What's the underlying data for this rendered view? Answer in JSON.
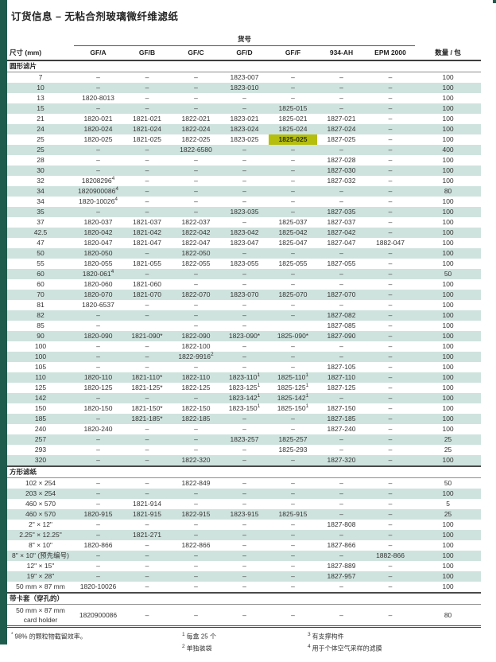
{
  "page": {
    "title": "订货信息 – 无粘合剂玻璃微纤维滤纸"
  },
  "colors": {
    "accent_green": "#1E5C4E",
    "row_stripe": "#CFE3DE",
    "highlight": "#B5BE0C"
  },
  "table": {
    "group_header": "货号",
    "columns": [
      "尺寸 (mm)",
      "GF/A",
      "GF/B",
      "GF/C",
      "GF/D",
      "GF/F",
      "934-AH",
      "EPM 2000",
      "数量 / 包"
    ],
    "highlight": {
      "section_index": 0,
      "row_index": 6,
      "col_index": 4
    },
    "sections": [
      {
        "label": "圆形滤片",
        "rows": [
          {
            "size": "7",
            "cells": [
              "–",
              "–",
              "–",
              "1823-007",
              "–",
              "–",
              "–"
            ],
            "qty": "100"
          },
          {
            "size": "10",
            "cells": [
              "–",
              "–",
              "–",
              "1823-010",
              "–",
              "–",
              "–"
            ],
            "qty": "100"
          },
          {
            "size": "13",
            "cells": [
              "1820-8013",
              "–",
              "–",
              "–",
              "–",
              "–",
              "–"
            ],
            "qty": "100"
          },
          {
            "size": "15",
            "cells": [
              "–",
              "–",
              "–",
              "–",
              "1825-015",
              "–",
              "–"
            ],
            "qty": "100"
          },
          {
            "size": "21",
            "cells": [
              "1820-021",
              "1821-021",
              "1822-021",
              "1823-021",
              "1825-021",
              "1827-021",
              "–"
            ],
            "qty": "100"
          },
          {
            "size": "24",
            "cells": [
              "1820-024",
              "1821-024",
              "1822-024",
              "1823-024",
              "1825-024",
              "1827-024",
              "–"
            ],
            "qty": "100"
          },
          {
            "size": "25",
            "cells": [
              "1820-025",
              "1821-025",
              "1822-025",
              "1823-025",
              "1825-025",
              "1827-025",
              "–"
            ],
            "qty": "100"
          },
          {
            "size": "25",
            "cells": [
              "–",
              "–",
              "1822-6580",
              "–",
              "–",
              "–",
              "–"
            ],
            "qty": "400"
          },
          {
            "size": "28",
            "cells": [
              "–",
              "–",
              "–",
              "–",
              "–",
              "1827-028",
              "–"
            ],
            "qty": "100"
          },
          {
            "size": "30",
            "cells": [
              "–",
              "–",
              "–",
              "–",
              "–",
              "1827-030",
              "–"
            ],
            "qty": "100"
          },
          {
            "size": "32",
            "cells": [
              "18208296^4",
              "–",
              "–",
              "–",
              "–",
              "1827-032",
              "–"
            ],
            "qty": "100"
          },
          {
            "size": "34",
            "cells": [
              "1820900086^4",
              "–",
              "–",
              "–",
              "–",
              "–",
              "–"
            ],
            "qty": "80"
          },
          {
            "size": "34",
            "cells": [
              "1820-10026^4",
              "–",
              "–",
              "–",
              "–",
              "–",
              "–"
            ],
            "qty": "100"
          },
          {
            "size": "35",
            "cells": [
              "–",
              "–",
              "–",
              "1823-035",
              "–",
              "1827-035",
              "–"
            ],
            "qty": "100"
          },
          {
            "size": "37",
            "cells": [
              "1820-037",
              "1821-037",
              "1822-037",
              "–",
              "1825-037",
              "1827-037",
              "–"
            ],
            "qty": "100"
          },
          {
            "size": "42.5",
            "cells": [
              "1820-042",
              "1821-042",
              "1822-042",
              "1823-042",
              "1825-042",
              "1827-042",
              "–"
            ],
            "qty": "100"
          },
          {
            "size": "47",
            "cells": [
              "1820-047",
              "1821-047",
              "1822-047",
              "1823-047",
              "1825-047",
              "1827-047",
              "1882-047"
            ],
            "qty": "100"
          },
          {
            "size": "50",
            "cells": [
              "1820-050",
              "–",
              "1822-050",
              "–",
              "–",
              "–",
              "–"
            ],
            "qty": "100"
          },
          {
            "size": "55",
            "cells": [
              "1820-055",
              "1821-055",
              "1822-055",
              "1823-055",
              "1825-055",
              "1827-055",
              "–"
            ],
            "qty": "100"
          },
          {
            "size": "60",
            "cells": [
              "1820-061^4",
              "–",
              "–",
              "–",
              "–",
              "–",
              "–"
            ],
            "qty": "50"
          },
          {
            "size": "60",
            "cells": [
              "1820-060",
              "1821-060",
              "–",
              "–",
              "–",
              "–",
              "–"
            ],
            "qty": "100"
          },
          {
            "size": "70",
            "cells": [
              "1820-070",
              "1821-070",
              "1822-070",
              "1823-070",
              "1825-070",
              "1827-070",
              "–"
            ],
            "qty": "100"
          },
          {
            "size": "81",
            "cells": [
              "1820-6537",
              "–",
              "–",
              "–",
              "–",
              "–",
              "–"
            ],
            "qty": "100"
          },
          {
            "size": "82",
            "cells": [
              "–",
              "–",
              "–",
              "–",
              "–",
              "1827-082",
              "–"
            ],
            "qty": "100"
          },
          {
            "size": "85",
            "cells": [
              "–",
              "",
              "–",
              "–",
              "",
              "1827-085",
              "–"
            ],
            "qty": "100"
          },
          {
            "size": "90",
            "cells": [
              "1820-090",
              "1821-090*",
              "1822-090",
              "1823-090*",
              "1825-090*",
              "1827-090",
              "–"
            ],
            "qty": "100"
          },
          {
            "size": "100",
            "cells": [
              "–",
              "–",
              "1822-100",
              "–",
              "–",
              "–",
              "–"
            ],
            "qty": "100"
          },
          {
            "size": "100",
            "cells": [
              "–",
              "–",
              "1822-9916^2",
              "–",
              "–",
              "–",
              "–"
            ],
            "qty": "100"
          },
          {
            "size": "105",
            "cells": [
              "–",
              "–",
              "–",
              "–",
              "–",
              "1827-105",
              "–"
            ],
            "qty": "100"
          },
          {
            "size": "110",
            "cells": [
              "1820-110",
              "1821-110*",
              "1822-110",
              "1823-110^1",
              "1825-110^1",
              "1827-110",
              "–"
            ],
            "qty": "100"
          },
          {
            "size": "125",
            "cells": [
              "1820-125",
              "1821-125*",
              "1822-125",
              "1823-125^1",
              "1825-125^1",
              "1827-125",
              "–"
            ],
            "qty": "100"
          },
          {
            "size": "142",
            "cells": [
              "–",
              "–",
              "–",
              "1823-142^1",
              "1825-142^1",
              "–",
              "–"
            ],
            "qty": "100"
          },
          {
            "size": "150",
            "cells": [
              "1820-150",
              "1821-150*",
              "1822-150",
              "1823-150^1",
              "1825-150^1",
              "1827-150",
              "–"
            ],
            "qty": "100"
          },
          {
            "size": "185",
            "cells": [
              "–",
              "1821-185*",
              "1822-185",
              "–",
              "–",
              "1827-185",
              "–"
            ],
            "qty": "100"
          },
          {
            "size": "240",
            "cells": [
              "1820-240",
              "–",
              "–",
              "–",
              "–",
              "1827-240",
              "–"
            ],
            "qty": "100"
          },
          {
            "size": "257",
            "cells": [
              "–",
              "–",
              "–",
              "1823-257",
              "1825-257",
              "–",
              "–"
            ],
            "qty": "25"
          },
          {
            "size": "293",
            "cells": [
              "–",
              "–",
              "–",
              "–",
              "1825-293",
              "–",
              "–"
            ],
            "qty": "25"
          },
          {
            "size": "320",
            "cells": [
              "–",
              "–",
              "1822-320",
              "–",
              "–",
              "1827-320",
              "–"
            ],
            "qty": "100"
          }
        ]
      },
      {
        "label": "方形滤纸",
        "rows": [
          {
            "size": "102 × 254",
            "cells": [
              "–",
              "–",
              "1822-849",
              "–",
              "–",
              "–",
              "–"
            ],
            "qty": "50"
          },
          {
            "size": "203 × 254",
            "cells": [
              "–",
              "–",
              "–",
              "–",
              "–",
              "–",
              "–"
            ],
            "qty": "100"
          },
          {
            "size": "460 × 570",
            "cells": [
              "–",
              "1821-914",
              "–",
              "–",
              "–",
              "–",
              "–"
            ],
            "qty": "5"
          },
          {
            "size": "460 × 570",
            "cells": [
              "1820-915",
              "1821-915",
              "1822-915",
              "1823-915",
              "1825-915",
              "–",
              "–"
            ],
            "qty": "25"
          },
          {
            "size": "2\" × 12\"",
            "cells": [
              "–",
              "–",
              "–",
              "–",
              "–",
              "1827-808",
              "–"
            ],
            "qty": "100"
          },
          {
            "size": "2.25\" × 12.25\"",
            "cells": [
              "–",
              "1821-271",
              "–",
              "–",
              "–",
              "–",
              "–"
            ],
            "qty": "100"
          },
          {
            "size": "8\" × 10\"",
            "cells": [
              "1820-866",
              "–",
              "1822-866",
              "–",
              "–",
              "1827-866",
              "–"
            ],
            "qty": "100"
          },
          {
            "size": "8\" × 10\" (预先编号)",
            "cells": [
              "–",
              "–",
              "–",
              "–",
              "–",
              "–",
              "1882-866"
            ],
            "qty": "100"
          },
          {
            "size": "12\" × 15\"",
            "cells": [
              "–",
              "–",
              "–",
              "–",
              "–",
              "1827-889",
              "–"
            ],
            "qty": "100"
          },
          {
            "size": "19\" × 28\"",
            "cells": [
              "–",
              "–",
              "–",
              "–",
              "–",
              "1827-957",
              "–"
            ],
            "qty": "100"
          },
          {
            "size": "50 mm × 87 mm",
            "cells": [
              "1820-10026",
              "–",
              "–",
              "–",
              "–",
              "–",
              "–"
            ],
            "qty": "100"
          }
        ]
      },
      {
        "label": "带卡套（穿孔的）",
        "rows": [
          {
            "size": "50 mm × 87 mm\ncard holder",
            "cells": [
              "1820900086",
              "–",
              "–",
              "–",
              "–",
              "–",
              "–"
            ],
            "qty": "80",
            "tall": true
          }
        ]
      }
    ]
  },
  "footnotes": {
    "left": [
      {
        "marker": "*",
        "text": "98% 的颗粒物截留效率。"
      }
    ],
    "middle": [
      {
        "marker": "1",
        "text": "每盒 25 个"
      },
      {
        "marker": "2",
        "text": "单独装袋"
      }
    ],
    "right": [
      {
        "marker": "3",
        "text": "有支撑构件"
      },
      {
        "marker": "4",
        "text": "用于个体空气采样的滤膜"
      }
    ]
  }
}
